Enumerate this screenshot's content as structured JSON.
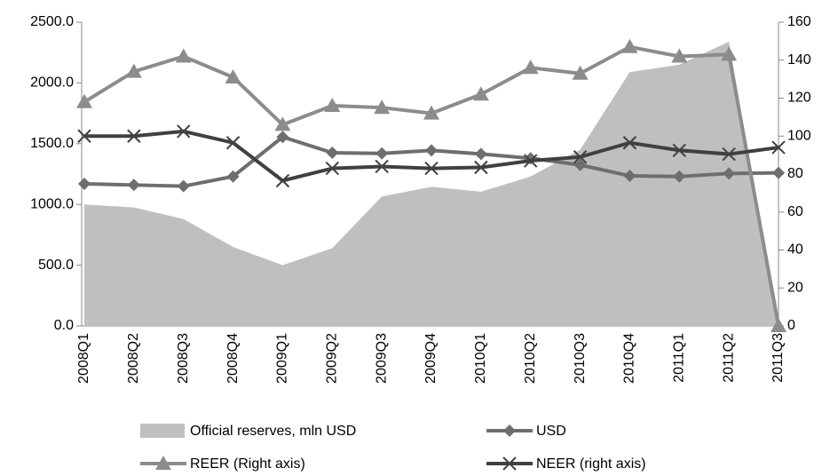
{
  "chart_data": {
    "type": "line",
    "categories": [
      "2008Q1",
      "2008Q2",
      "2008Q3",
      "2008Q4",
      "2009Q1",
      "2009Q2",
      "2009Q3",
      "2009Q4",
      "2010Q1",
      "2010Q2",
      "2010Q3",
      "2010Q4",
      "2011Q1",
      "2011Q2",
      "2011Q3"
    ],
    "series": [
      {
        "name": "Official reserves, mln USD",
        "type": "area",
        "color": "#bfbfbf",
        "values": [
          1000,
          975,
          880,
          650,
          500,
          640,
          1065,
          1145,
          1105,
          1230,
          1450,
          2090,
          2150,
          2340,
          0
        ]
      },
      {
        "name": "USD",
        "type": "line",
        "marker": "diamond",
        "color": "#6e6e6e",
        "values": [
          1170,
          1160,
          1150,
          1230,
          1555,
          1425,
          1420,
          1445,
          1415,
          1380,
          1325,
          1235,
          1230,
          1255,
          1260
        ]
      },
      {
        "name": "REER (Right axis)",
        "type": "line",
        "marker": "triangle",
        "color": "#8c8c8c",
        "axis": "y2",
        "values": [
          118,
          134,
          142,
          131,
          106,
          116,
          115,
          112,
          122,
          136,
          133,
          147,
          142,
          143,
          0
        ]
      },
      {
        "name": "NEER (right axis)",
        "type": "line",
        "marker": "x",
        "color": "#404040",
        "axis": "y2",
        "values": [
          100,
          100,
          102.5,
          96.5,
          76.5,
          83,
          84,
          83,
          83.5,
          87,
          89,
          96.5,
          92.5,
          90.5,
          94
        ]
      }
    ],
    "ylim": [
      0,
      2500
    ],
    "yticks": [
      {
        "value": 0,
        "label": "0.0"
      },
      {
        "value": 500,
        "label": "500.0"
      },
      {
        "value": 1000,
        "label": "1000.0"
      },
      {
        "value": 1500,
        "label": "1500.0"
      },
      {
        "value": 2000,
        "label": "2000.0"
      },
      {
        "value": 2500,
        "label": "2500.0"
      }
    ],
    "y2lim": [
      0,
      160
    ],
    "y2ticks": [
      0,
      20,
      40,
      60,
      80,
      100,
      120,
      140,
      160
    ],
    "grid": false
  }
}
